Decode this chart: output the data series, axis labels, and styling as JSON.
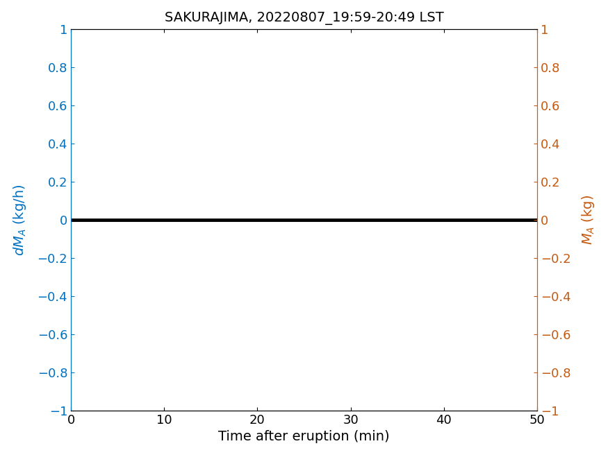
{
  "title": "SAKURAJIMA, 20220807_19:59-20:49 LST",
  "xlabel": "Time after eruption (min)",
  "xlim": [
    0,
    50
  ],
  "ylim": [
    -1,
    1
  ],
  "xticks": [
    0,
    10,
    20,
    30,
    40,
    50
  ],
  "yticks": [
    -1,
    -0.8,
    -0.6,
    -0.4,
    -0.2,
    0,
    0.2,
    0.4,
    0.6,
    0.8,
    1
  ],
  "ytick_labels": [
    "−1",
    "−0.8",
    "−0.6",
    "−0.4",
    "−0.2",
    "0",
    "0.2",
    "0.4",
    "0.6",
    "0.8",
    "1"
  ],
  "line_color": "#000000",
  "line_width": 3.5,
  "left_axis_color": "#0070C0",
  "right_axis_color": "#C55A11",
  "title_fontsize": 14,
  "label_fontsize": 14,
  "tick_fontsize": 13,
  "background_color": "#ffffff",
  "x_data": [
    0,
    50
  ],
  "y_data": [
    0,
    0
  ]
}
